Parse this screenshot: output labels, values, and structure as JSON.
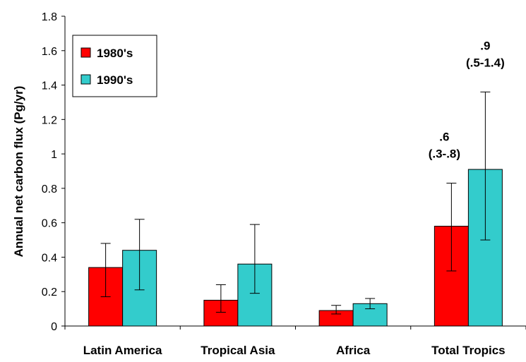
{
  "chart_data": {
    "type": "bar",
    "title": "",
    "xlabel": "",
    "ylabel": "Annual net carbon flux (Pg/yr)",
    "ylim": [
      0,
      1.8
    ],
    "yticks": [
      "0",
      "0.2",
      "0.4",
      "0.6",
      "0.8",
      "1",
      "1.2",
      "1.4",
      "1.6",
      "1.8"
    ],
    "grid": false,
    "legend_position": "top-left",
    "categories": [
      "Latin America",
      "Tropical Asia",
      "Africa",
      "Total Tropics"
    ],
    "series": [
      {
        "name": "1980's",
        "color": "#ff0000",
        "values": [
          0.34,
          0.15,
          0.09,
          0.58
        ],
        "error_low": [
          0.17,
          0.08,
          0.07,
          0.32
        ],
        "error_high": [
          0.48,
          0.24,
          0.12,
          0.83
        ]
      },
      {
        "name": "1990's",
        "color": "#33cccc",
        "values": [
          0.44,
          0.36,
          0.13,
          0.91
        ],
        "error_low": [
          0.21,
          0.19,
          0.1,
          0.5
        ],
        "error_high": [
          0.62,
          0.59,
          0.16,
          1.36
        ]
      }
    ],
    "annotations": [
      {
        "category": "Total Tropics",
        "series": "1980's",
        "lines": [
          ".6",
          "(.3-.8)"
        ]
      },
      {
        "category": "Total Tropics",
        "series": "1990's",
        "lines": [
          ".9",
          "(.5-1.4)"
        ]
      }
    ]
  }
}
